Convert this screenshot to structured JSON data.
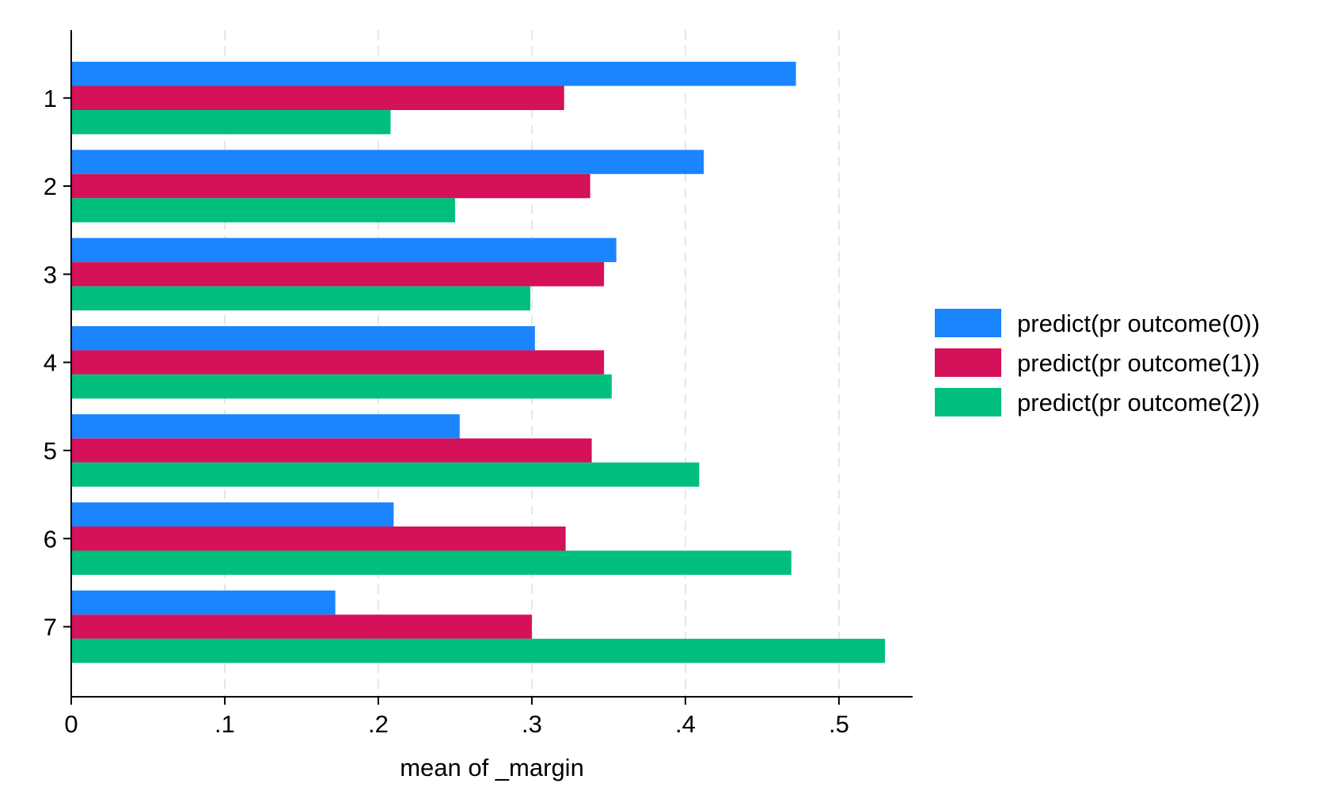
{
  "chart_data": {
    "type": "bar",
    "orientation": "horizontal",
    "categories": [
      "1",
      "2",
      "3",
      "4",
      "5",
      "6",
      "7"
    ],
    "series": [
      {
        "name": "predict(pr outcome(0))",
        "color": "#1a85ff",
        "values": [
          0.472,
          0.412,
          0.355,
          0.302,
          0.253,
          0.21,
          0.172
        ]
      },
      {
        "name": "predict(pr outcome(1))",
        "color": "#d41159",
        "values": [
          0.321,
          0.338,
          0.347,
          0.347,
          0.339,
          0.322,
          0.3
        ]
      },
      {
        "name": "predict(pr outcome(2))",
        "color": "#00bf7d",
        "values": [
          0.208,
          0.25,
          0.299,
          0.352,
          0.409,
          0.469,
          0.53
        ]
      }
    ],
    "xticks": [
      {
        "value": 0,
        "label": "0"
      },
      {
        "value": 0.1,
        "label": ".1"
      },
      {
        "value": 0.2,
        "label": ".2"
      },
      {
        "value": 0.3,
        "label": ".3"
      },
      {
        "value": 0.4,
        "label": ".4"
      },
      {
        "value": 0.5,
        "label": ".5"
      }
    ],
    "xlim": [
      0,
      0.548
    ],
    "xlabel": "mean of _margin",
    "ylabel": "",
    "title": "",
    "grid": "vertical dashed",
    "legend_position": "right"
  }
}
